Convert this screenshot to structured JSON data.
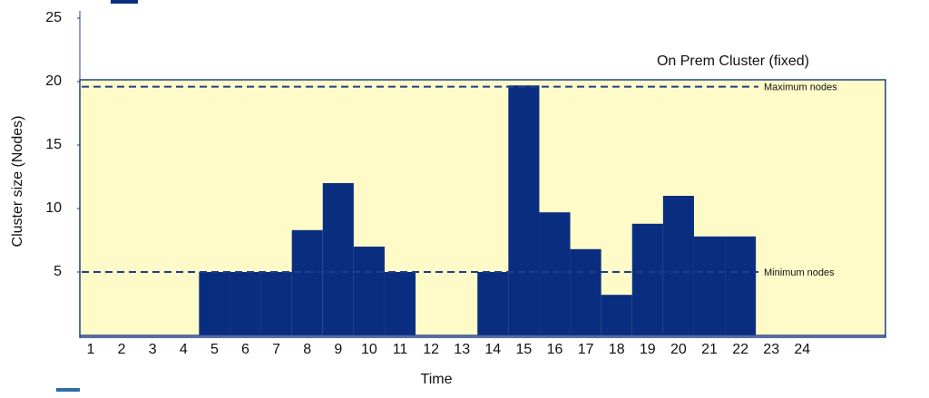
{
  "chart_data": {
    "type": "bar",
    "title": "On Prem Cluster (fixed)",
    "y_label": "Cluster size (Nodes)",
    "x_label": "Time",
    "categories": [
      "1",
      "2",
      "3",
      "4",
      "5",
      "6",
      "7",
      "8",
      "9",
      "10",
      "11",
      "12",
      "13",
      "14",
      "15",
      "16",
      "17",
      "18",
      "19",
      "20",
      "21",
      "22",
      "23",
      "24"
    ],
    "values": [
      0,
      0,
      0,
      0,
      5,
      5,
      5,
      8.3,
      12,
      7,
      5,
      0,
      0,
      5,
      19.7,
      9.7,
      6.8,
      3.2,
      8.8,
      11,
      7.8,
      7.8,
      0,
      0
    ],
    "color": "#0a2e7f",
    "background": "#fffbc8",
    "ylim": [
      0,
      25
    ],
    "yticks": [
      5,
      10,
      15,
      20,
      25
    ],
    "reference_lines": [
      {
        "value": 19.6,
        "label": "Maximum nodes"
      },
      {
        "value": 5,
        "label": "Minimum nodes"
      }
    ]
  }
}
